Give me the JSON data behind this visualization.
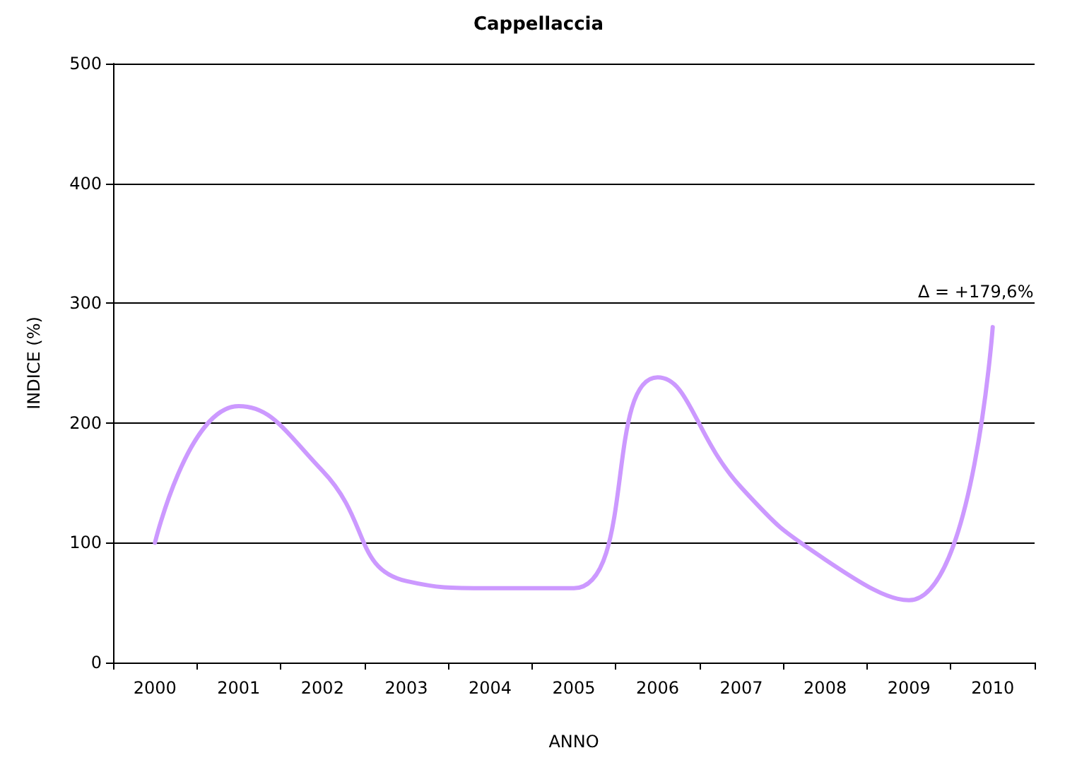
{
  "chart_data": {
    "type": "line",
    "title": "Cappellaccia",
    "xlabel": "ANNO",
    "ylabel": "INDICE (%)",
    "categories": [
      "2000",
      "2001",
      "2002",
      "2003",
      "2004",
      "2005",
      "2006",
      "2007",
      "2008",
      "2009",
      "2010"
    ],
    "series": [
      {
        "color": "#cc99ff",
        "values": [
          100,
          214,
          160,
          68,
          62,
          62,
          238,
          146,
          86,
          52,
          280
        ]
      }
    ],
    "ylim": [
      0,
      500
    ],
    "yticks": [
      0,
      100,
      200,
      300,
      400,
      500
    ],
    "grid": "y",
    "marker": "none",
    "line_style": "solid",
    "annotations": [
      {
        "text": "Δ = +179,6%",
        "x": "2010",
        "y": 280
      }
    ]
  }
}
